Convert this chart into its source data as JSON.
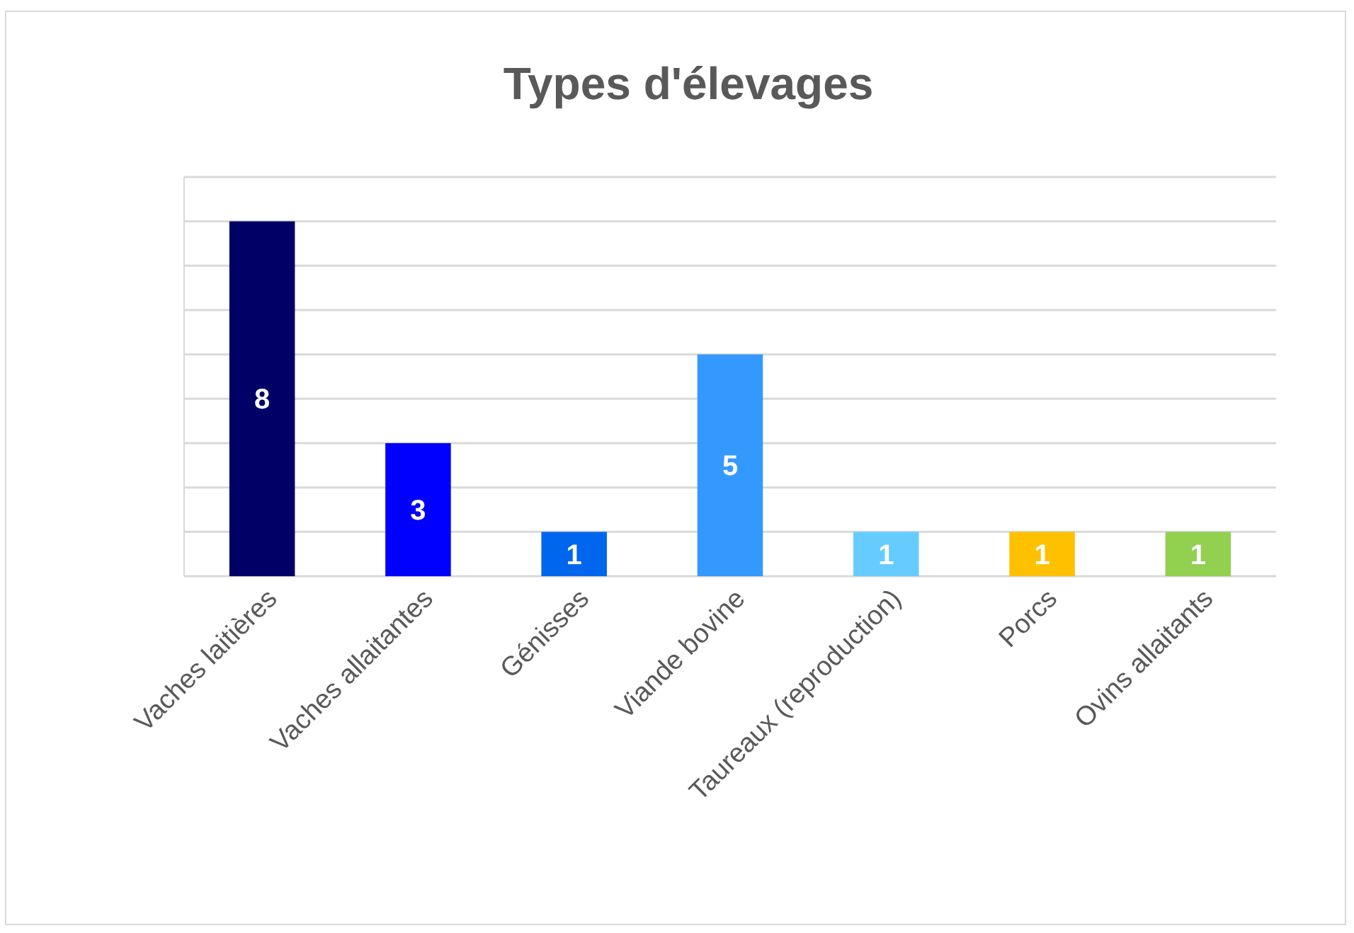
{
  "chart_data": {
    "type": "bar",
    "title": "Types d'élevages",
    "categories": [
      "Vaches laitières",
      "Vaches allaitantes",
      "Génisses",
      "Viande bovine",
      "Taureaux (reproduction)",
      "Porcs",
      "Ovins allaitants"
    ],
    "values": [
      8,
      3,
      1,
      5,
      1,
      1,
      1
    ],
    "colors": [
      "#000066",
      "#0000ff",
      "#0066ee",
      "#3399ff",
      "#66ccff",
      "#ffc000",
      "#92d050"
    ],
    "ylim": [
      0,
      9
    ],
    "yticks": [
      {
        "value": 0,
        "label": null
      },
      {
        "value": 1,
        "label": null
      },
      {
        "value": 2,
        "label": null
      },
      {
        "value": 3,
        "label": null
      },
      {
        "value": 4,
        "label": null
      },
      {
        "value": 5,
        "label": null
      },
      {
        "value": 6,
        "label": null
      },
      {
        "value": 7,
        "label": null
      },
      {
        "value": 8,
        "label": null
      },
      {
        "value": 9,
        "label": null
      }
    ],
    "tick_labels": "x",
    "grid": "y",
    "data_labels": true
  }
}
